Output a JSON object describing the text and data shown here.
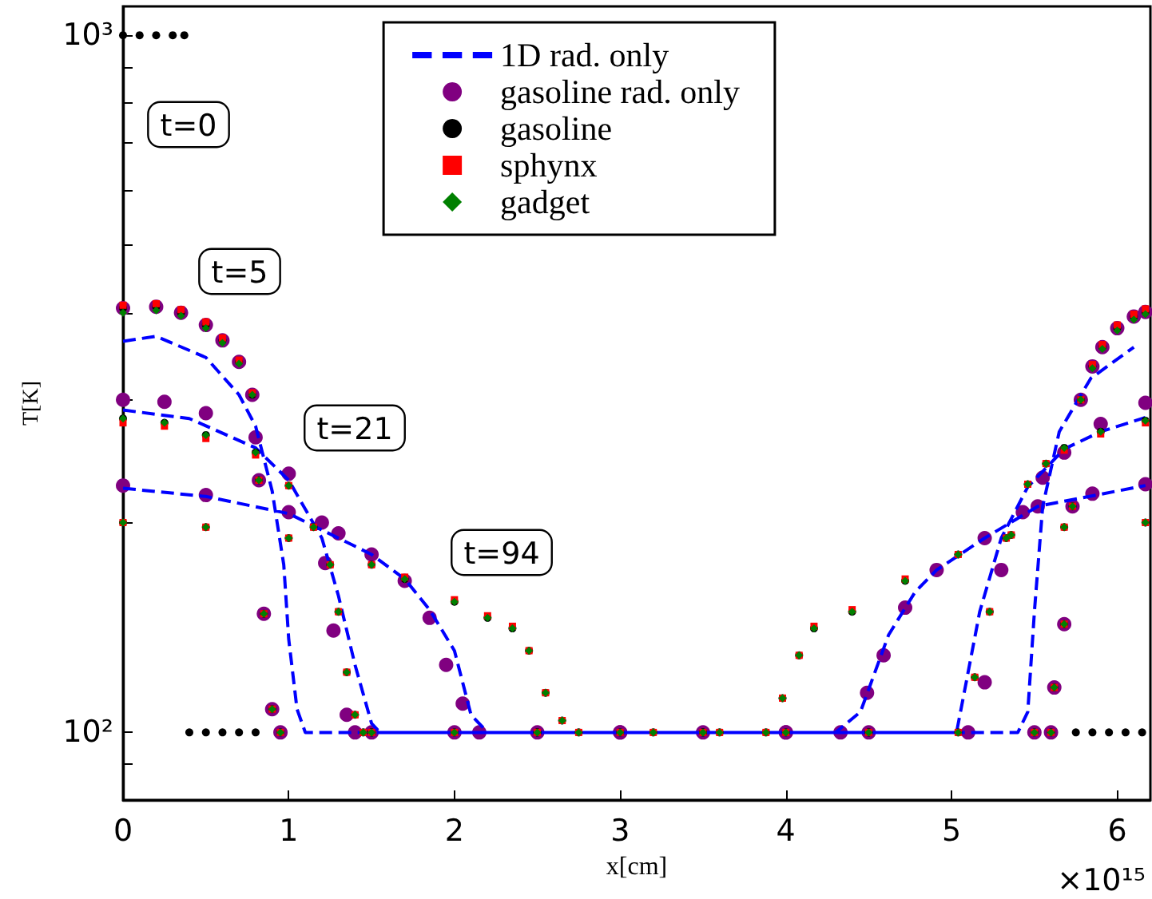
{
  "chart_data": {
    "type": "scatter",
    "xlabel": "x[cm]",
    "ylabel": "T[K]",
    "xlim": [
      0,
      6.2
    ],
    "xticks": [
      0,
      1,
      2,
      3,
      4,
      5,
      6
    ],
    "ylim": [
      80,
      1100
    ],
    "log": "y",
    "yticks": [
      {
        "value": 90,
        "label": null
      },
      {
        "value": 100,
        "label": "10²"
      },
      {
        "value": 200,
        "label": null
      },
      {
        "value": 300,
        "label": null
      },
      {
        "value": 400,
        "label": null
      },
      {
        "value": 500,
        "label": null
      },
      {
        "value": 600,
        "label": null
      },
      {
        "value": 700,
        "label": null
      },
      {
        "value": 800,
        "label": null
      },
      {
        "value": 900,
        "label": null
      },
      {
        "value": 1000,
        "label": "10³"
      }
    ],
    "grid": false,
    "legend": "top",
    "annotations": [
      "t=0",
      "t=5",
      "t=21",
      "t=94",
      "×10¹⁵"
    ],
    "series": [
      {
        "name": "1D rad. only",
        "type": "line",
        "color": "#0000ff",
        "line_style": "dashed",
        "marker": "none",
        "x": [
          0,
          0.2,
          0.5,
          0.7,
          0.8,
          0.9,
          0.97,
          1.0,
          1.05,
          1.1,
          5.4,
          5.46,
          5.5,
          5.55,
          5.65,
          5.84,
          6.1,
          null,
          0,
          0.4,
          0.8,
          1.0,
          1.2,
          1.3,
          1.4,
          1.5,
          1.55,
          5.03,
          5.07,
          5.17,
          5.3,
          5.46,
          5.68,
          5.9,
          6.17,
          null,
          0,
          0.5,
          1.0,
          1.5,
          1.7,
          1.85,
          2.0,
          2.1,
          2.2,
          4.3,
          4.45,
          4.62,
          4.78,
          4.91,
          5.2,
          5.52,
          6.17
        ],
        "values": [
          364,
          370,
          345,
          305,
          275,
          222,
          174,
          136,
          108,
          100,
          100,
          107,
          149,
          211,
          270,
          322,
          357,
          null,
          290,
          282,
          256,
          230,
          190,
          157,
          125,
          103,
          100,
          100,
          112,
          149,
          190,
          225,
          255,
          270,
          283,
          null,
          224,
          218,
          206,
          180,
          166,
          150,
          131,
          106,
          100,
          100,
          107,
          138,
          159,
          171,
          190,
          211,
          226
        ]
      },
      {
        "name": "gasoline rad. only",
        "color": "#800080",
        "marker": "circle",
        "x": [
          0,
          0.2,
          0.35,
          0.5,
          0.6,
          0.7,
          0.78,
          0.82,
          0.85,
          0.9,
          0.95,
          1.5,
          2.5,
          3.5,
          4.5,
          5.5,
          5.6,
          5.62,
          5.68,
          5.73,
          5.78,
          5.85,
          5.91,
          6.0,
          6.1,
          6.17,
          0,
          0.25,
          0.5,
          0.8,
          1.0,
          1.2,
          1.22,
          1.27,
          1.35,
          1.4,
          2,
          3,
          4,
          5.1,
          5.2,
          5.3,
          5.43,
          5.55,
          5.68,
          5.9,
          6.17,
          0,
          0.5,
          1.0,
          1.3,
          1.5,
          1.7,
          1.85,
          1.95,
          2.05,
          2.15,
          3,
          4,
          4.33,
          4.49,
          4.59,
          4.72,
          4.91,
          5.2,
          5.52,
          5.85,
          6.17
        ],
        "values": [
          406,
          408,
          400,
          384,
          365,
          340,
          305,
          230,
          148,
          108,
          100,
          100,
          100,
          100,
          100,
          100,
          100,
          116,
          143,
          211,
          300,
          335,
          357,
          380,
          395,
          401,
          300,
          298,
          287,
          265,
          235,
          200,
          175,
          140,
          106,
          100,
          100,
          100,
          100,
          100,
          118,
          171,
          207,
          232,
          252,
          277,
          297,
          226,
          219,
          207,
          193,
          180,
          165,
          146,
          125,
          110,
          100,
          100,
          100,
          100,
          114,
          129,
          151,
          171,
          190,
          211,
          220,
          227
        ]
      },
      {
        "name": "gasoline",
        "color": "#000000",
        "marker": "circle",
        "x": [
          0,
          0.1,
          0.2,
          0.3,
          0.37,
          0.4,
          0.5,
          0.6,
          0.7,
          0.8,
          1.5,
          2.5,
          3.5,
          4.5,
          5.75,
          5.85,
          5.95,
          6.05,
          6.15,
          0,
          0.2,
          0.35,
          0.5,
          0.6,
          0.7,
          0.78,
          0.82,
          0.85,
          0.9,
          0.95,
          1.5,
          2.5,
          3.5,
          4.5,
          5.5,
          5.6,
          5.62,
          5.68,
          5.73,
          5.78,
          5.85,
          5.91,
          6.0,
          6.1,
          6.17,
          0,
          0.25,
          0.5,
          0.8,
          1.0,
          1.15,
          1.25,
          1.3,
          1.35,
          1.4,
          1.45,
          2.0,
          3.0,
          4.0,
          5.04,
          5.14,
          5.23,
          5.33,
          5.46,
          5.57,
          5.68,
          5.9,
          6.17,
          0,
          0.5,
          1.0,
          1.5,
          1.7,
          2.0,
          2.2,
          2.35,
          2.45,
          2.55,
          2.65,
          2.75,
          3.2,
          3.6,
          3.88,
          3.98,
          4.08,
          4.17,
          4.4,
          4.72,
          5.04,
          5.36,
          5.68,
          6.17
        ],
        "values": [
          1000,
          1000,
          1000,
          1000,
          1000,
          100,
          100,
          100,
          100,
          100,
          100,
          100,
          100,
          100,
          100,
          100,
          100,
          100,
          100,
          406,
          408,
          400,
          384,
          365,
          340,
          305,
          230,
          148,
          108,
          100,
          100,
          100,
          100,
          100,
          100,
          100,
          116,
          143,
          211,
          300,
          335,
          357,
          380,
          395,
          401,
          282,
          278,
          267,
          252,
          226,
          197,
          174,
          149,
          122,
          106,
          100,
          100,
          100,
          100,
          100,
          120,
          149,
          190,
          227,
          243,
          256,
          270,
          280,
          200,
          197,
          190,
          174,
          166,
          154,
          146,
          141,
          131,
          114,
          104,
          100,
          100,
          100,
          100,
          112,
          129,
          141,
          149,
          165,
          180,
          192,
          197,
          200
        ]
      },
      {
        "name": "sphynx",
        "color": "#ff0000",
        "marker": "square",
        "x": [
          0,
          0.2,
          0.35,
          0.5,
          0.6,
          0.7,
          0.78,
          0.82,
          0.85,
          0.9,
          0.95,
          1.5,
          2.5,
          3.5,
          4.5,
          5.5,
          5.6,
          5.62,
          5.68,
          5.73,
          5.78,
          5.85,
          5.91,
          6.0,
          6.1,
          6.17,
          0,
          0.25,
          0.5,
          0.8,
          1.0,
          1.15,
          1.25,
          1.3,
          1.35,
          1.4,
          1.45,
          2.0,
          3.0,
          4.0,
          5.04,
          5.14,
          5.23,
          5.33,
          5.46,
          5.57,
          5.68,
          5.9,
          6.17,
          0,
          0.5,
          1.0,
          1.5,
          1.7,
          2.0,
          2.2,
          2.35,
          2.45,
          2.55,
          2.65,
          2.75,
          3.2,
          3.6,
          3.88,
          3.98,
          4.08,
          4.17,
          4.4,
          4.72,
          5.04,
          5.36,
          5.68,
          6.17
        ],
        "values": [
          410,
          412,
          404,
          388,
          368,
          342,
          307,
          230,
          148,
          108,
          100,
          100,
          100,
          100,
          100,
          100,
          100,
          116,
          143,
          211,
          300,
          337,
          360,
          384,
          398,
          405,
          278,
          275,
          264,
          250,
          226,
          197,
          174,
          149,
          122,
          106,
          100,
          100,
          100,
          100,
          100,
          120,
          149,
          190,
          227,
          243,
          254,
          268,
          278,
          200,
          197,
          190,
          174,
          167,
          155,
          147,
          142,
          131,
          114,
          104,
          100,
          100,
          100,
          100,
          112,
          129,
          142,
          150,
          166,
          180,
          192,
          197,
          200
        ]
      },
      {
        "name": "gadget",
        "color": "#008000",
        "marker": "diamond",
        "x": [
          0,
          0.2,
          0.35,
          0.5,
          0.6,
          0.7,
          0.78,
          0.82,
          0.85,
          0.9,
          0.95,
          1.5,
          2.5,
          3.5,
          4.5,
          5.5,
          5.6,
          5.62,
          5.68,
          5.73,
          5.78,
          5.85,
          5.91,
          6.0,
          6.1,
          6.17,
          0,
          0.25,
          0.5,
          0.8,
          1.0,
          1.15,
          1.25,
          1.3,
          1.35,
          1.4,
          1.45,
          2.0,
          3.0,
          4.0,
          5.04,
          5.14,
          5.23,
          5.33,
          5.46,
          5.57,
          5.68,
          5.9,
          6.17,
          0,
          0.5,
          1.0,
          1.5,
          1.7,
          2.0,
          2.2,
          2.35,
          2.45,
          2.55,
          2.65,
          2.75,
          3.2,
          3.6,
          3.88,
          3.98,
          4.08,
          4.17,
          4.4,
          4.72,
          5.04,
          5.36,
          5.68,
          6.17
        ],
        "values": [
          400,
          403,
          396,
          380,
          362,
          338,
          305,
          230,
          148,
          108,
          100,
          100,
          100,
          100,
          100,
          100,
          100,
          116,
          143,
          211,
          300,
          333,
          355,
          377,
          391,
          398,
          282,
          278,
          267,
          252,
          226,
          197,
          174,
          149,
          122,
          106,
          100,
          100,
          100,
          100,
          100,
          120,
          149,
          190,
          227,
          243,
          256,
          270,
          280,
          200,
          197,
          190,
          174,
          166,
          154,
          146,
          141,
          131,
          114,
          104,
          100,
          100,
          100,
          100,
          112,
          129,
          141,
          149,
          165,
          180,
          192,
          197,
          200
        ]
      }
    ]
  }
}
